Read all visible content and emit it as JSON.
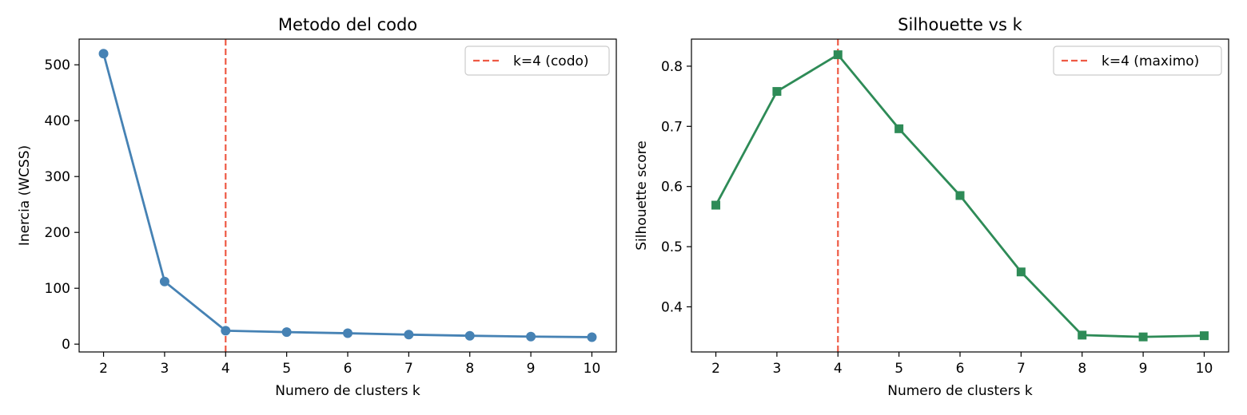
{
  "chart_data": [
    {
      "type": "line",
      "title": "Metodo del codo",
      "xlabel": "Numero de clusters k",
      "ylabel": "Inercia (WCSS)",
      "x": [
        2,
        3,
        4,
        5,
        6,
        7,
        8,
        9,
        10
      ],
      "xlim": [
        1.6,
        10.4
      ],
      "ylim": [
        -14,
        546
      ],
      "xticks": [
        2,
        3,
        4,
        5,
        6,
        7,
        8,
        9,
        10
      ],
      "yticks": [
        0,
        100,
        200,
        300,
        400,
        500
      ],
      "series": [
        {
          "values": [
            520,
            112,
            24,
            21.5,
            19.5,
            17,
            15,
            13.5,
            12.5
          ],
          "color": "#4682b4",
          "marker": "circle"
        }
      ],
      "vline": {
        "x": 4,
        "label": "k=4 (codo)",
        "color": "#ee5a45",
        "style": "dashed"
      },
      "legend": "top-right",
      "grid": false
    },
    {
      "type": "line",
      "title": "Silhouette vs k",
      "xlabel": "Numero de clusters k",
      "ylabel": "Silhouette score",
      "x": [
        2,
        3,
        4,
        5,
        6,
        7,
        8,
        9,
        10
      ],
      "xlim": [
        1.6,
        10.4
      ],
      "ylim": [
        0.325,
        0.845
      ],
      "xticks": [
        2,
        3,
        4,
        5,
        6,
        7,
        8,
        9,
        10
      ],
      "yticks": [
        0.4,
        0.5,
        0.6,
        0.7,
        0.8
      ],
      "series": [
        {
          "values": [
            0.569,
            0.758,
            0.819,
            0.696,
            0.585,
            0.458,
            0.353,
            0.35,
            0.352
          ],
          "color": "#2e8b57",
          "marker": "square"
        }
      ],
      "vline": {
        "x": 4,
        "label": "k=4 (maximo)",
        "color": "#ee5a45",
        "style": "dashed"
      },
      "legend": "top-right",
      "grid": false
    }
  ]
}
